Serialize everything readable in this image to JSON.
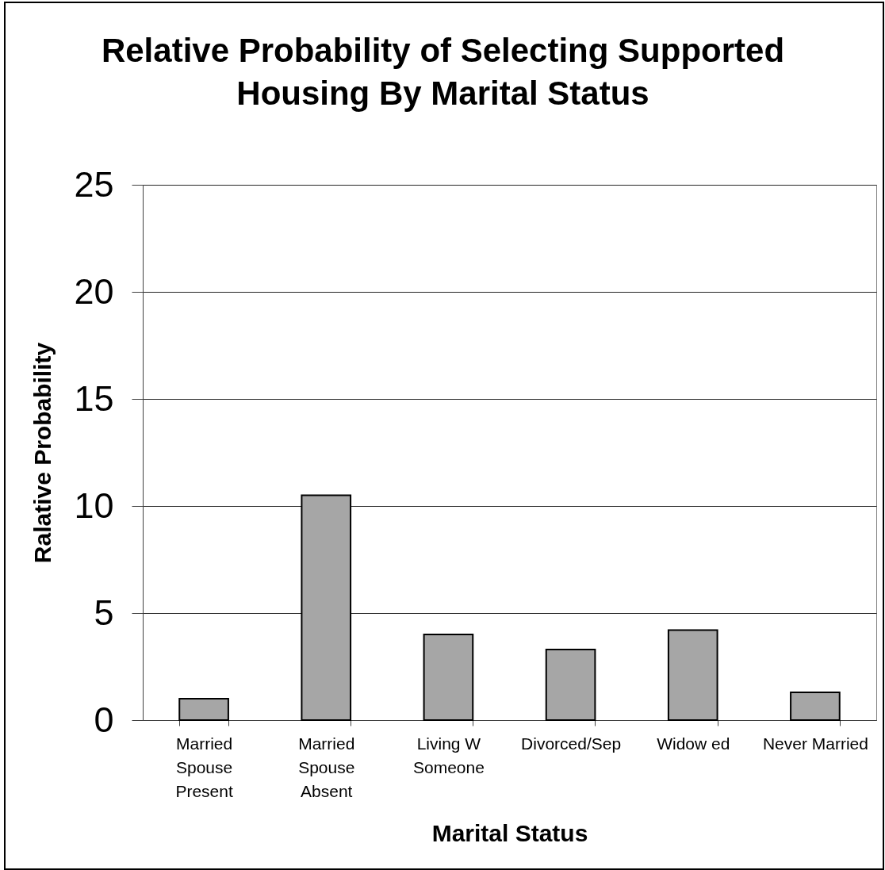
{
  "chart_data": {
    "type": "bar",
    "title": "Relative Probability of Selecting Supported\nHousing By Marital Status",
    "xlabel": "Marital Status",
    "ylabel": "Ralative Probability",
    "categories": [
      "Married\nSpouse\nPresent",
      "Married\nSpouse\nAbsent",
      "Living W\nSomeone",
      "Divorced/Sep",
      "Widow ed",
      "Never Married"
    ],
    "values": [
      1,
      10.5,
      4,
      3.3,
      4.2,
      1.3
    ],
    "color": "#a6a6a6",
    "ylim": [
      0,
      25
    ],
    "yticks": [
      0,
      5,
      10,
      15,
      20,
      25
    ],
    "grid": "y"
  }
}
